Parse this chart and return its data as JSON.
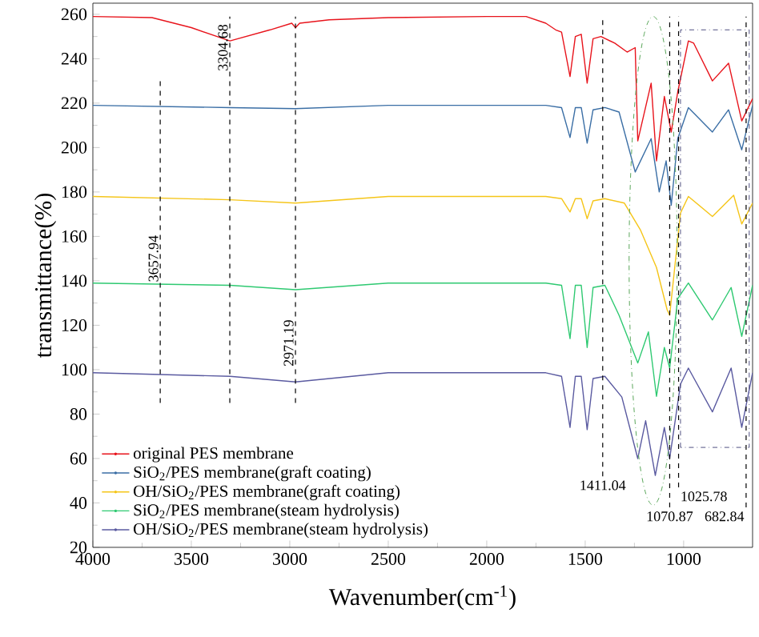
{
  "chart_data": {
    "type": "line",
    "xlabel": "Wavenumber(cm$^{-1}$)",
    "ylabel": "transmittance(%)",
    "xlim": [
      4000,
      650
    ],
    "ylim": [
      20,
      265
    ],
    "xticks": [
      4000,
      3500,
      3000,
      2500,
      2000,
      1500,
      1000
    ],
    "yticks": [
      20,
      40,
      60,
      80,
      100,
      120,
      140,
      160,
      180,
      200,
      220,
      240,
      260
    ],
    "legend": "bottom left",
    "marker": "none",
    "line_style": "solid",
    "series": [
      {
        "name": "original PES membrane",
        "color": "#e8141c",
        "x": [
          4000,
          3700,
          3500,
          3304,
          3100,
          2990,
          2971,
          2950,
          2800,
          2500,
          2000,
          1800,
          1700,
          1650,
          1620,
          1577,
          1550,
          1520,
          1490,
          1460,
          1420,
          1350,
          1287,
          1246,
          1233,
          1165,
          1138,
          1098,
          1063,
          1030,
          976,
          949,
          854,
          772,
          705,
          650
        ],
        "values": [
          259,
          258.5,
          254,
          248,
          253,
          256,
          254,
          256,
          257.5,
          258.5,
          259,
          259,
          256,
          253,
          252,
          232,
          250,
          251,
          229,
          249,
          250,
          247,
          243,
          245,
          203,
          229,
          194,
          223,
          207,
          225,
          248,
          247,
          230,
          238,
          212,
          222
        ]
      },
      {
        "name": "SiO$_{2}$/PES membrane(graft coating)",
        "color": "#3a6ea5",
        "x": [
          4000,
          3304,
          2971,
          2500,
          1700,
          1620,
          1577,
          1550,
          1520,
          1490,
          1460,
          1400,
          1328,
          1246,
          1165,
          1124,
          1089,
          1063,
          1030,
          976,
          854,
          772,
          705,
          650
        ],
        "values": [
          219,
          218,
          217.5,
          219,
          219,
          218,
          204.5,
          218,
          218,
          202,
          217,
          218,
          216,
          189,
          204,
          180,
          194,
          174,
          204,
          218,
          207,
          217,
          199,
          219
        ]
      },
      {
        "name": "OH/SiO$_{2}$/PES membrane(graft coating)",
        "color": "#f5c518",
        "x": [
          4000,
          3304,
          2971,
          2500,
          1700,
          1620,
          1577,
          1550,
          1520,
          1490,
          1460,
          1400,
          1301,
          1220,
          1138,
          1084,
          1071,
          1016,
          976,
          854,
          746,
          705,
          650
        ],
        "values": [
          178,
          176.5,
          175,
          178,
          178,
          177,
          171,
          177,
          177,
          168,
          176,
          177,
          175,
          163,
          146,
          127,
          124.5,
          170.5,
          178,
          169,
          178.5,
          165.6,
          175
        ]
      },
      {
        "name": "SiO$_{2}$/PES membrane(steam hydrolysis)",
        "color": "#2ec971",
        "x": [
          4000,
          3304,
          2971,
          2500,
          1700,
          1620,
          1577,
          1550,
          1520,
          1490,
          1460,
          1400,
          1328,
          1233,
          1179,
          1138,
          1098,
          1071,
          1030,
          976,
          854,
          759,
          705,
          650
        ],
        "values": [
          139,
          138,
          136,
          139,
          139,
          138,
          114,
          138,
          138,
          110,
          137,
          138,
          124.5,
          103,
          117,
          88,
          110,
          100.7,
          132,
          139,
          122.4,
          137,
          115,
          138
        ]
      },
      {
        "name": "OH/SiO$_{2}$/PES membrane(steam hydrolysis)",
        "color": "#5a5aa0",
        "x": [
          4000,
          3304,
          2971,
          2500,
          1700,
          1620,
          1577,
          1550,
          1520,
          1490,
          1460,
          1400,
          1314,
          1233,
          1193,
          1144,
          1098,
          1071,
          1016,
          976,
          854,
          759,
          705,
          650
        ],
        "values": [
          98.6,
          97,
          94.5,
          98.6,
          98.6,
          97,
          74,
          97,
          97,
          73,
          96,
          97,
          87.7,
          60,
          77,
          52.4,
          74,
          60,
          93.5,
          100.7,
          81,
          100.7,
          74,
          98.6
        ]
      }
    ],
    "ref_lines": [
      {
        "axis": "x",
        "value": 3657.94,
        "label": "3657.94",
        "line_style": "dashed"
      },
      {
        "axis": "x",
        "value": 3304.68,
        "label": "3304.68",
        "line_style": "dashed"
      },
      {
        "axis": "x",
        "value": 2971.19,
        "label": "2971.19",
        "line_style": "dashed"
      },
      {
        "axis": "x",
        "value": 1411.04,
        "label": "1411.04",
        "line_style": "dashed"
      },
      {
        "axis": "x",
        "value": 1070.87,
        "label": "1070.87",
        "line_style": "dashed"
      },
      {
        "axis": "x",
        "value": 1025.78,
        "label": "1025.78",
        "line_style": "dashed"
      },
      {
        "axis": "x",
        "value": 682.84,
        "label": "682.84",
        "line_style": "dashed"
      }
    ]
  }
}
